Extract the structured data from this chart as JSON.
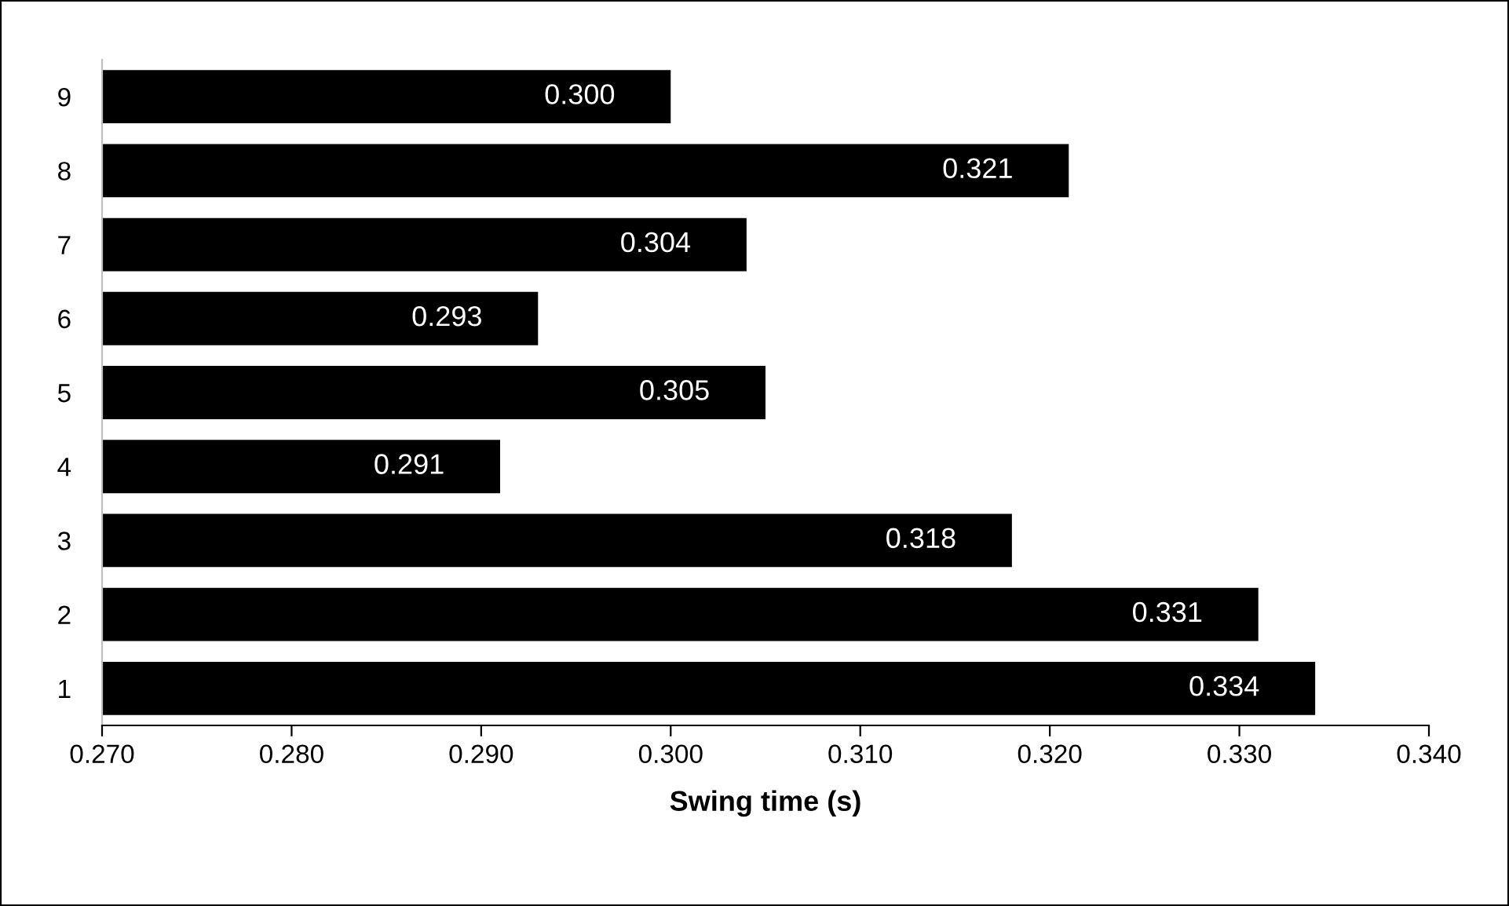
{
  "chart_data": {
    "type": "bar",
    "orientation": "horizontal",
    "xlabel": "Swing time (s)",
    "categories": [
      "9",
      "8",
      "7",
      "6",
      "5",
      "4",
      "3",
      "2",
      "1"
    ],
    "values": [
      0.3,
      0.321,
      0.304,
      0.293,
      0.305,
      0.291,
      0.318,
      0.331,
      0.334
    ],
    "value_labels": [
      "0.300",
      "0.321",
      "0.304",
      "0.293",
      "0.305",
      "0.291",
      "0.318",
      "0.331",
      "0.334"
    ],
    "color": "#000000",
    "xlim": [
      0.27,
      0.34
    ],
    "xticks": [
      {
        "value": 0.27,
        "label": "0.270"
      },
      {
        "value": 0.28,
        "label": "0.280"
      },
      {
        "value": 0.29,
        "label": "0.290"
      },
      {
        "value": 0.3,
        "label": "0.300"
      },
      {
        "value": 0.31,
        "label": "0.310"
      },
      {
        "value": 0.32,
        "label": "0.320"
      },
      {
        "value": 0.33,
        "label": "0.330"
      },
      {
        "value": 0.34,
        "label": "0.340"
      }
    ],
    "grid": false,
    "legend": false
  }
}
